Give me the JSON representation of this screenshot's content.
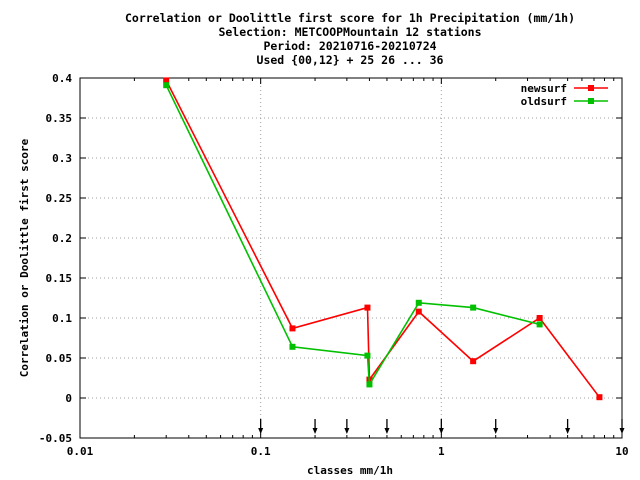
{
  "chart_data": {
    "type": "line",
    "title_lines": [
      "Correlation or Doolittle first score  for 1h Precipitation (mm/1h)",
      "Selection: METCOOPMountain     12 stations",
      "Period: 20210716-20210724",
      "Used {00,12} + 25 26 ... 36"
    ],
    "xlabel": "classes mm/1h",
    "ylabel": "Correlation or Doolittle first score",
    "x_scale": "log",
    "xlim": [
      0.01,
      10
    ],
    "ylim": [
      -0.05,
      0.4
    ],
    "grid": true,
    "legend_position": "top-right",
    "x_ticks": [
      {
        "value": 0.01,
        "label": "0.01"
      },
      {
        "value": 0.1,
        "label": "0.1"
      },
      {
        "value": 1,
        "label": "1"
      },
      {
        "value": 10,
        "label": "10"
      }
    ],
    "y_ticks": [
      {
        "value": -0.05,
        "label": "-0.05"
      },
      {
        "value": 0,
        "label": "0"
      },
      {
        "value": 0.05,
        "label": "0.05"
      },
      {
        "value": 0.1,
        "label": "0.1"
      },
      {
        "value": 0.15,
        "label": "0.15"
      },
      {
        "value": 0.2,
        "label": "0.2"
      },
      {
        "value": 0.25,
        "label": "0.25"
      },
      {
        "value": 0.3,
        "label": "0.3"
      },
      {
        "value": 0.35,
        "label": "0.35"
      },
      {
        "value": 0.4,
        "label": "0.4"
      }
    ],
    "class_limit_markers": [
      0.1,
      0.2,
      0.3,
      0.5,
      1,
      2,
      5,
      10
    ],
    "series": [
      {
        "name": "newsurf",
        "color": "#ff0000",
        "x": [
          0.03,
          0.15,
          0.39,
          0.4,
          0.75,
          1.5,
          3.5,
          7.5
        ],
        "y": [
          0.397,
          0.087,
          0.113,
          0.023,
          0.108,
          0.046,
          0.1,
          0.001
        ]
      },
      {
        "name": "oldsurf",
        "color": "#00c000",
        "x": [
          0.03,
          0.15,
          0.39,
          0.4,
          0.75,
          1.5,
          3.5
        ],
        "y": [
          0.391,
          0.064,
          0.053,
          0.017,
          0.119,
          0.113,
          0.092
        ]
      }
    ]
  }
}
